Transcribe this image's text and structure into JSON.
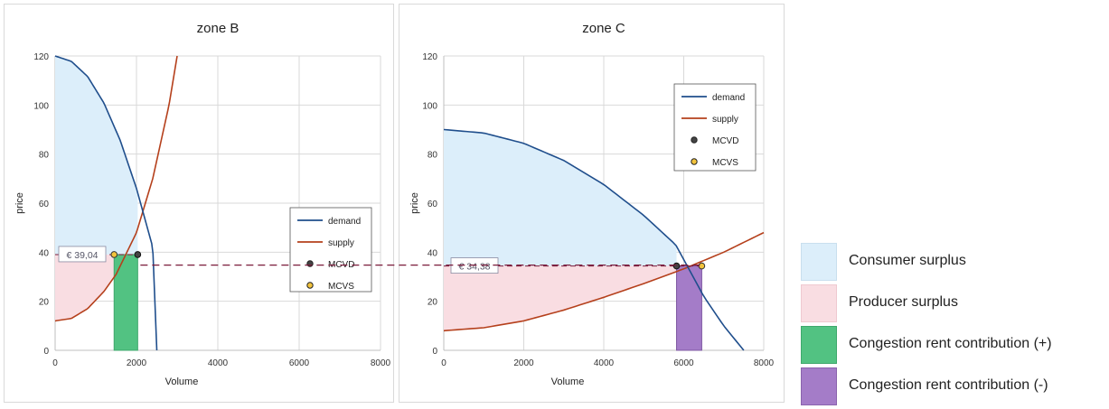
{
  "colors": {
    "demand": "#1f4e8c",
    "supply": "#b5401c",
    "consumer_surplus": "#dceefa",
    "producer_surplus": "#f9dde2",
    "rent_positive": "#52c282",
    "rent_negative": "#a47cc8",
    "price_line": "#7a1b3a",
    "mcvd_marker": "#444444",
    "mcvs_marker": "#f2c33c"
  },
  "legend": {
    "consumer_surplus": "Consumer surplus",
    "producer_surplus": "Producer surplus",
    "rent_positive": "Congestion rent contribution (+)",
    "rent_negative": "Congestion rent contribution (-)"
  },
  "chart_data": [
    {
      "type": "line",
      "title": "zone B",
      "xlabel": "Volume",
      "ylabel": "price",
      "xlim": [
        0,
        8000
      ],
      "ylim": [
        0,
        120
      ],
      "xticks": [
        "0",
        "2000",
        "4000",
        "6000",
        "8000"
      ],
      "yticks": [
        "0",
        "20",
        "40",
        "60",
        "80",
        "100",
        "120"
      ],
      "grid": true,
      "legend_position": "right-center",
      "series": [
        {
          "name": "demand",
          "x": [
            0,
            400,
            800,
            1200,
            1600,
            2000,
            2400,
            2500
          ],
          "y": [
            120,
            117.8,
            111.6,
            100.8,
            85.6,
            66,
            42,
            0
          ]
        },
        {
          "name": "supply",
          "x": [
            0,
            400,
            800,
            1200,
            1500,
            2000,
            2400,
            2800,
            3000
          ],
          "y": [
            12,
            13,
            17,
            24,
            31,
            48,
            70,
            100,
            120
          ]
        },
        {
          "name": "MCVD",
          "x": [
            2030
          ],
          "y": [
            39.04
          ]
        },
        {
          "name": "MCVS",
          "x": [
            1450
          ],
          "y": [
            39.04
          ]
        }
      ],
      "price_annotation": "€ 39,04",
      "price": 39.04,
      "congestion_rent": {
        "sign": "+",
        "x_from": 1450,
        "x_to": 2030,
        "price": 39.04
      }
    },
    {
      "type": "line",
      "title": "zone C",
      "xlabel": "Volume",
      "ylabel": "price",
      "xlim": [
        0,
        8000
      ],
      "ylim": [
        0,
        120
      ],
      "xticks": [
        "0",
        "2000",
        "4000",
        "6000",
        "8000"
      ],
      "yticks": [
        "0",
        "20",
        "40",
        "60",
        "80",
        "100",
        "120"
      ],
      "grid": true,
      "legend_position": "top-right",
      "series": [
        {
          "name": "demand",
          "x": [
            0,
            1000,
            2000,
            3000,
            4000,
            5000,
            5800,
            6500,
            7000,
            7500
          ],
          "y": [
            90,
            88.6,
            84.4,
            77.4,
            67.6,
            55,
            43,
            22,
            10,
            0
          ]
        },
        {
          "name": "supply",
          "x": [
            0,
            1000,
            2000,
            3000,
            4000,
            5000,
            6000,
            7000,
            8000
          ],
          "y": [
            8,
            9.2,
            12,
            16.4,
            21.6,
            27.2,
            33.2,
            40,
            48
          ]
        },
        {
          "name": "MCVD",
          "x": [
            5820
          ],
          "y": [
            34.38
          ]
        },
        {
          "name": "MCVS",
          "x": [
            6450
          ],
          "y": [
            34.38
          ]
        }
      ],
      "price_annotation": "€ 34,38",
      "price": 34.38,
      "congestion_rent": {
        "sign": "-",
        "x_from": 5820,
        "x_to": 6450,
        "price": 34.38
      }
    }
  ]
}
